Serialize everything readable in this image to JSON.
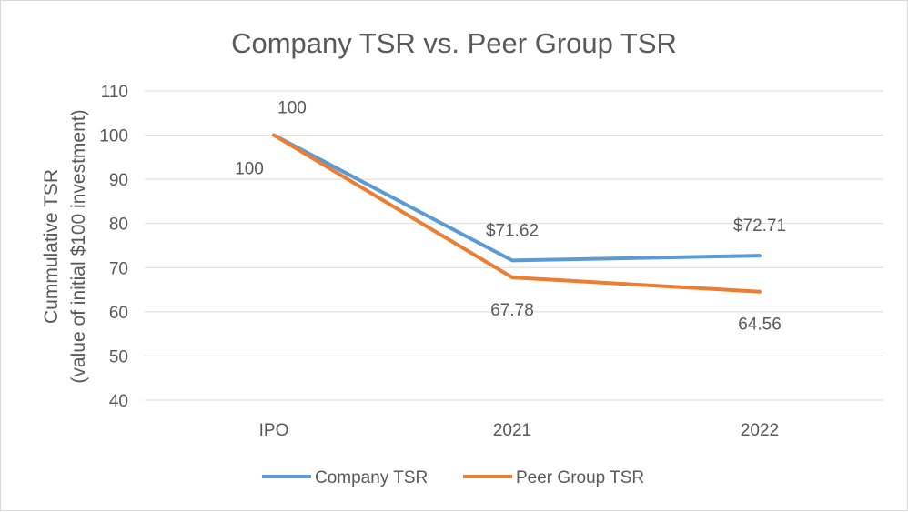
{
  "chart_data": {
    "type": "line",
    "title": "Company TSR vs. Peer Group TSR",
    "ylabel_line1": "Cummulative TSR",
    "ylabel_line2": "(value of initial $100 investment)",
    "xlabel": "",
    "categories": [
      "IPO",
      "2021",
      "2022"
    ],
    "ylim": [
      40,
      110
    ],
    "yticks": [
      40,
      50,
      60,
      70,
      80,
      90,
      100,
      110
    ],
    "grid": true,
    "legend_position": "bottom",
    "series": [
      {
        "name": "Company TSR",
        "color": "#5b9bd5",
        "values": [
          100,
          71.62,
          72.71
        ],
        "labels": [
          "100",
          "$71.62",
          "$72.71"
        ],
        "label_placement": "above"
      },
      {
        "name": "Peer Group TSR",
        "color": "#ed7d31",
        "values": [
          100,
          67.78,
          64.56
        ],
        "labels": [
          "100",
          "67.78",
          "64.56"
        ],
        "label_placement": "below"
      }
    ],
    "colors": {
      "text": "#595959",
      "title": "#595959",
      "gridline": "#d9d9d9"
    }
  }
}
